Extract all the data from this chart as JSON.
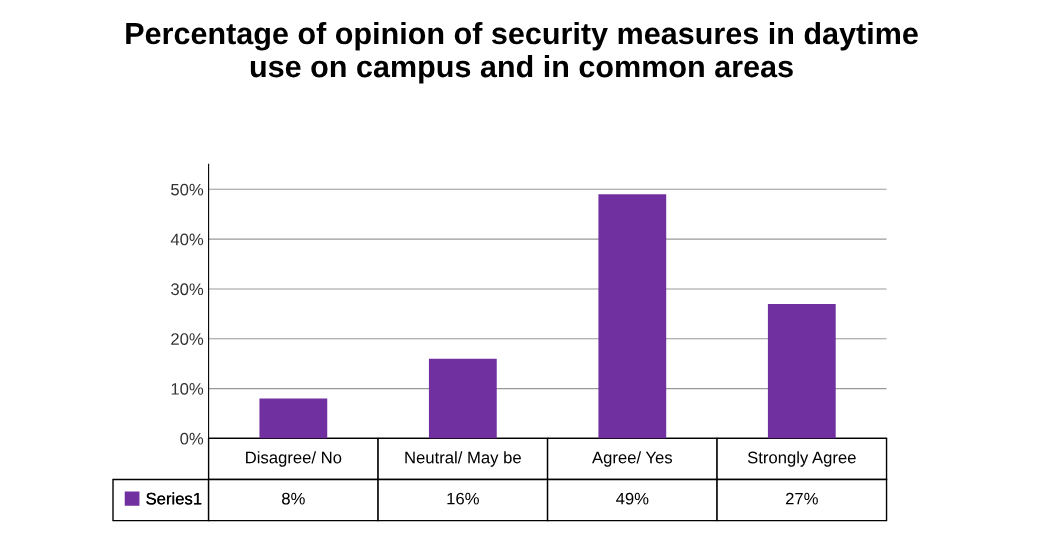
{
  "chart_data": {
    "type": "bar",
    "title": "Percentage of opinion of security measures in daytime\nuse on campus and in common areas",
    "categories": [
      "Disagree/ No",
      "Neutral/ May be",
      "Agree/ Yes",
      "Strongly Agree"
    ],
    "series": [
      {
        "name": "Series1",
        "color": "#7030a0",
        "values": [
          8,
          16,
          49,
          27
        ],
        "value_labels": [
          "8%",
          "16%",
          "49%",
          "27%"
        ]
      }
    ],
    "ylim": [
      0,
      55
    ],
    "yticks": [
      {
        "value": 0,
        "label": "0%"
      },
      {
        "value": 10,
        "label": "10%"
      },
      {
        "value": 20,
        "label": "20%"
      },
      {
        "value": 30,
        "label": "30%"
      },
      {
        "value": 40,
        "label": "40%"
      },
      {
        "value": 50,
        "label": "50%"
      }
    ],
    "grid": "y",
    "legend": "bottom",
    "data_labels": true
  }
}
